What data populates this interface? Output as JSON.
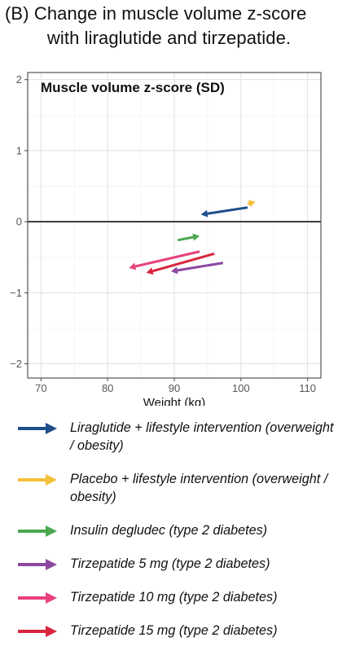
{
  "title": {
    "line1": "(B) Change in muscle volume z-score",
    "line2": "with liraglutide and tirzepatide."
  },
  "chart_data": {
    "type": "line",
    "subtitle": "Muscle volume z-score (SD)",
    "xlabel": "Weight (kg)",
    "ylabel": "",
    "xlim": [
      68,
      112
    ],
    "ylim": [
      -2.2,
      2.1
    ],
    "xticks": [
      70,
      80,
      90,
      100,
      110
    ],
    "yticks": [
      2,
      1,
      0,
      -1,
      -2
    ],
    "ytick_labels": [
      "2",
      "1",
      "0",
      "−1",
      "−2"
    ],
    "grid": true,
    "reference_line_y": 0,
    "series": [
      {
        "name": "Liraglutide + lifestyle intervention (overweight / obesity)",
        "color": "#1d4e89",
        "start": [
          101.0,
          0.2
        ],
        "end": [
          94.0,
          0.1
        ]
      },
      {
        "name": "Placebo + lifestyle intervention (overweight / obesity)",
        "color": "#f5c03a",
        "start": [
          101.0,
          0.25
        ],
        "end": [
          102.2,
          0.28
        ]
      },
      {
        "name": "Insulin degludec (type 2 diabetes)",
        "color": "#4aa84f",
        "start": [
          90.5,
          -0.26
        ],
        "end": [
          93.8,
          -0.2
        ]
      },
      {
        "name": "Tirzepatide 5 mg (type 2 diabetes)",
        "color": "#8c48a0",
        "start": [
          97.3,
          -0.58
        ],
        "end": [
          89.5,
          -0.7
        ]
      },
      {
        "name": "Tirzepatide 10 mg (type 2 diabetes)",
        "color": "#e8417e",
        "start": [
          93.8,
          -0.42
        ],
        "end": [
          83.2,
          -0.65
        ]
      },
      {
        "name": "Tirzepatide 15 mg (type 2 diabetes)",
        "color": "#d7263d",
        "start": [
          96.0,
          -0.45
        ],
        "end": [
          85.8,
          -0.72
        ]
      }
    ]
  },
  "legend": [
    {
      "label": "Liraglutide + lifestyle intervention (overweight / obesity)",
      "color": "#1d4e89"
    },
    {
      "label": "Placebo + lifestyle intervention (overweight / obesity)",
      "color": "#f5c03a"
    },
    {
      "label": "Insulin degludec (type 2 diabetes)",
      "color": "#4aa84f"
    },
    {
      "label": "Tirzepatide 5 mg (type 2 diabetes)",
      "color": "#8c48a0"
    },
    {
      "label": "Tirzepatide 10 mg (type 2 diabetes)",
      "color": "#e8417e"
    },
    {
      "label": "Tirzepatide 15 mg (type 2 diabetes)",
      "color": "#d7263d"
    }
  ]
}
